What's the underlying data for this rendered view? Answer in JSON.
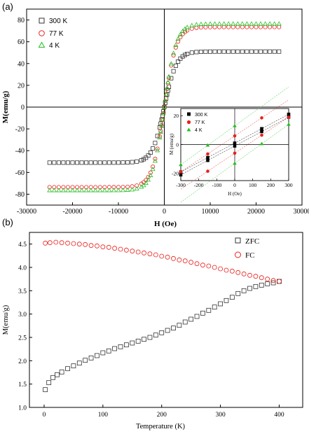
{
  "chart_data": [
    {
      "panel_label": "(a)",
      "type": "scatter",
      "xlabel": "H (Oe)",
      "ylabel": "M(emu/g)",
      "xlim": [
        -30000,
        30000
      ],
      "ylim": [
        -90,
        90
      ],
      "xticks": [
        -30000,
        -20000,
        -10000,
        0,
        10000,
        20000,
        30000
      ],
      "yticks": [
        -80,
        -60,
        -40,
        -20,
        0,
        20,
        40,
        60,
        80
      ],
      "tick_labels_x": [
        "-30000",
        "-20000",
        "-10000",
        "0",
        "10000",
        "20000",
        "30000"
      ],
      "tick_labels_y": [
        "-80",
        "-60",
        "-40",
        "-20",
        "0",
        "20",
        "40",
        "60",
        "80"
      ],
      "zero_lines": true,
      "legend_placement": "top-left",
      "series": [
        {
          "name": "300 K",
          "marker": "square",
          "color": "#333333",
          "Ms": 51,
          "H0": 2600
        },
        {
          "name": "77 K",
          "marker": "circle",
          "color": "#e8201c",
          "Ms": 73.5,
          "H0": 2600
        },
        {
          "name": "4 K",
          "marker": "triangle",
          "color": "#22c022",
          "Ms": 76.5,
          "H0": 2600
        }
      ],
      "x_points": [
        -25000,
        -24000,
        -23000,
        -22000,
        -21000,
        -20000,
        -19000,
        -18000,
        -17000,
        -16000,
        -15000,
        -14000,
        -13000,
        -12000,
        -11000,
        -10000,
        -9000,
        -8000,
        -7000,
        -6000,
        -5000,
        -4500,
        -4000,
        -3500,
        -3000,
        -2500,
        -2000,
        -1500,
        -1000,
        -800,
        -600,
        -400,
        -200,
        0,
        200,
        400,
        600,
        800,
        1000,
        1500,
        2000,
        2500,
        3000,
        3500,
        4000,
        4500,
        5000,
        6000,
        7000,
        8000,
        9000,
        10000,
        11000,
        12000,
        13000,
        14000,
        15000,
        16000,
        17000,
        18000,
        19000,
        20000,
        21000,
        22000,
        23000,
        24000,
        25000
      ],
      "inset": {
        "xlabel": "H (Oe)",
        "ylabel": "M (emu/g)",
        "xlim": [
          -300,
          300
        ],
        "ylim": [
          -25,
          25
        ],
        "xticks": [
          -300,
          -200,
          -100,
          0,
          100,
          200,
          300
        ],
        "yticks": [
          -20,
          0,
          20
        ],
        "tick_labels_x": [
          "-300",
          "-200",
          "-100",
          "0",
          "100",
          "200",
          "300"
        ],
        "tick_labels_y": [
          "-20",
          "0",
          "20"
        ],
        "legend_placement": "top-left",
        "x_points": [
          -300,
          -150,
          0,
          150,
          300
        ],
        "series": [
          {
            "name": "300 K",
            "marker": "square",
            "color": "#000000",
            "slope": 0.0667,
            "half_width": 1.0
          },
          {
            "name": "77 K",
            "marker": "circle",
            "color": "#e8201c",
            "slope": 0.0833,
            "half_width": 6.0
          },
          {
            "name": "4 K",
            "marker": "triangle",
            "color": "#22c022",
            "slope": 0.09,
            "half_width": 13.0
          }
        ]
      }
    },
    {
      "panel_label": "(b)",
      "type": "scatter",
      "xlabel": "Temperature (K)",
      "ylabel": "M(emu/g)",
      "xlim": [
        -25,
        440
      ],
      "ylim": [
        1.0,
        4.75
      ],
      "xticks": [
        0,
        100,
        200,
        300,
        400
      ],
      "yticks": [
        1.0,
        1.5,
        2.0,
        2.5,
        3.0,
        3.5,
        4.0,
        4.5
      ],
      "tick_labels_x": [
        "0",
        "100",
        "200",
        "300",
        "400"
      ],
      "tick_labels_y": [
        "1.0",
        "1.5",
        "2.0",
        "2.5",
        "3.0",
        "3.5",
        "4.0",
        "4.5"
      ],
      "legend_placement": "top-right",
      "series": [
        {
          "name": "ZFC",
          "marker": "square",
          "color": "#333333",
          "x": [
            2,
            8,
            15,
            22,
            30,
            40,
            50,
            60,
            70,
            80,
            90,
            100,
            110,
            120,
            130,
            140,
            150,
            160,
            170,
            180,
            190,
            200,
            210,
            220,
            230,
            240,
            250,
            260,
            270,
            280,
            290,
            300,
            310,
            320,
            330,
            340,
            350,
            360,
            370,
            380,
            390,
            400
          ],
          "y": [
            1.38,
            1.53,
            1.64,
            1.7,
            1.76,
            1.83,
            1.89,
            1.95,
            2.01,
            2.06,
            2.11,
            2.17,
            2.21,
            2.26,
            2.3,
            2.34,
            2.38,
            2.42,
            2.46,
            2.5,
            2.55,
            2.6,
            2.65,
            2.7,
            2.76,
            2.83,
            2.89,
            2.95,
            3.02,
            3.08,
            3.15,
            3.22,
            3.29,
            3.36,
            3.44,
            3.5,
            3.55,
            3.59,
            3.62,
            3.65,
            3.67,
            3.7
          ]
        },
        {
          "name": "FC",
          "marker": "circle",
          "color": "#e8201c",
          "x": [
            2,
            10,
            20,
            30,
            40,
            50,
            60,
            70,
            80,
            90,
            100,
            110,
            120,
            130,
            140,
            150,
            160,
            170,
            180,
            190,
            200,
            210,
            220,
            230,
            240,
            250,
            260,
            270,
            280,
            290,
            300,
            310,
            320,
            330,
            340,
            350,
            360,
            370,
            380,
            390,
            400
          ],
          "y": [
            4.52,
            4.53,
            4.54,
            4.53,
            4.52,
            4.51,
            4.5,
            4.49,
            4.47,
            4.46,
            4.44,
            4.43,
            4.41,
            4.39,
            4.37,
            4.35,
            4.33,
            4.31,
            4.29,
            4.27,
            4.24,
            4.22,
            4.19,
            4.16,
            4.14,
            4.11,
            4.08,
            4.05,
            4.03,
            4.0,
            3.97,
            3.94,
            3.92,
            3.89,
            3.86,
            3.83,
            3.81,
            3.78,
            3.75,
            3.72,
            3.7
          ]
        }
      ]
    }
  ]
}
